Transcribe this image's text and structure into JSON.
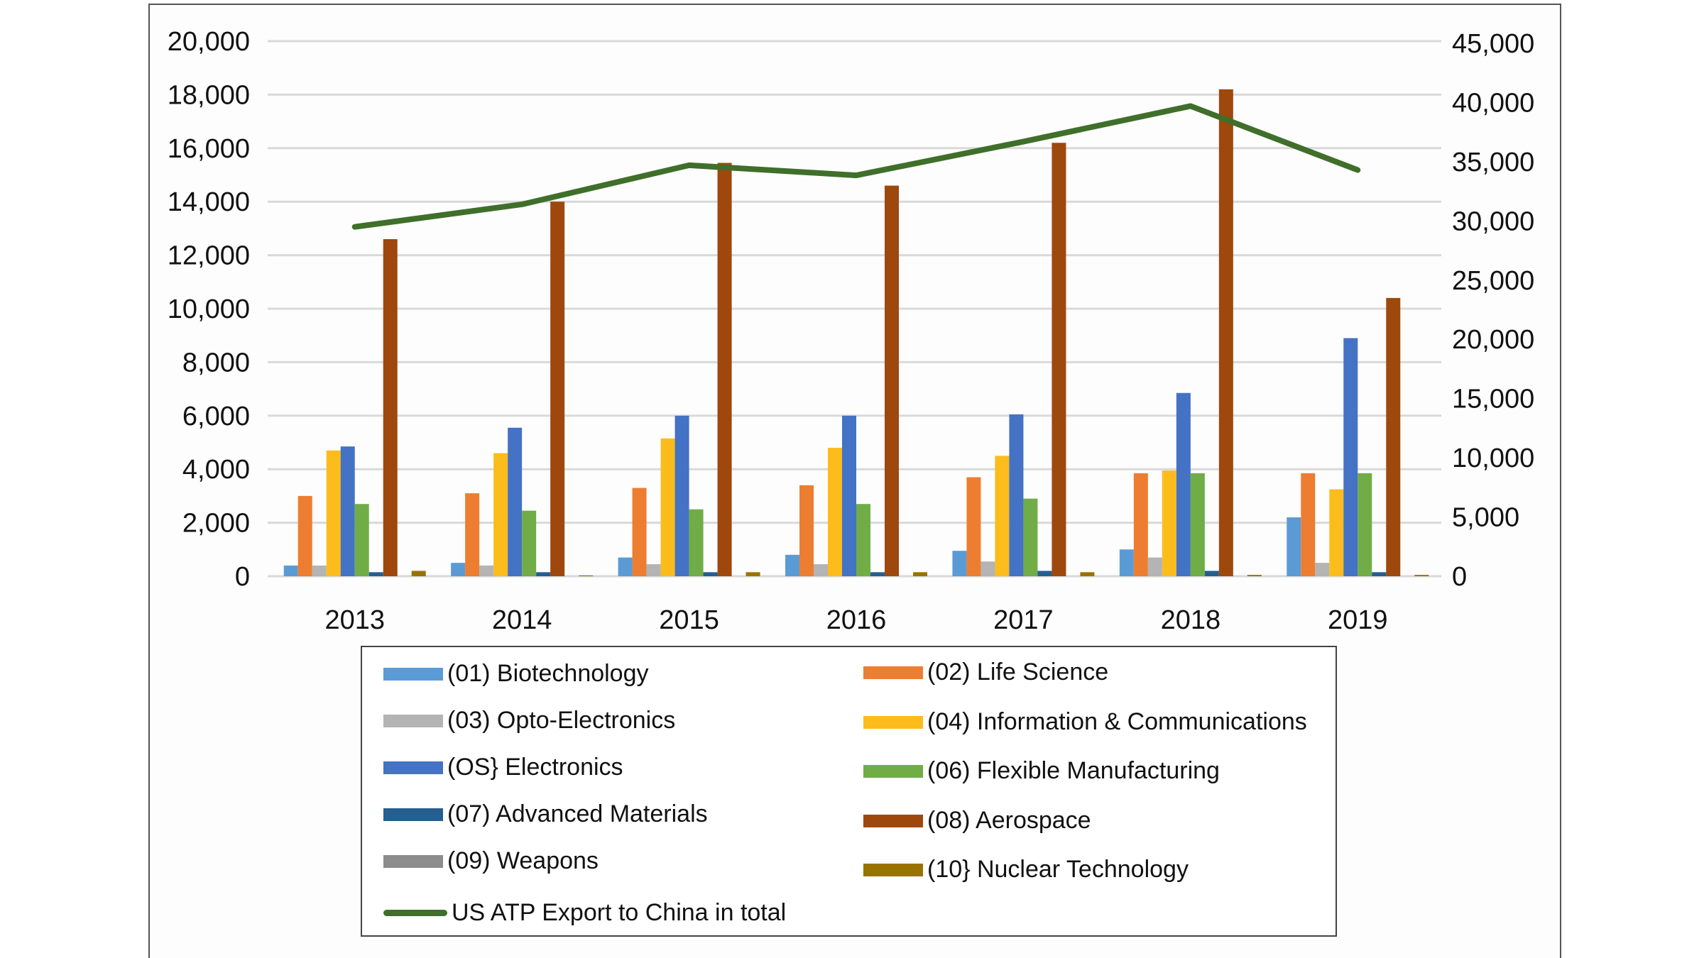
{
  "chart_data": {
    "type": "bar",
    "categories": [
      "2013",
      "2014",
      "2015",
      "2016",
      "2017",
      "2018",
      "2019"
    ],
    "left_axis": {
      "ylim": [
        0,
        20000
      ],
      "ticks": [
        "0",
        "2,000",
        "4,000",
        "6,000",
        "8,000",
        "10,000",
        "12,000",
        "14,000",
        "16,000",
        "18,000",
        "20,000"
      ]
    },
    "right_axis": {
      "ylim": [
        0,
        45000
      ],
      "ticks": [
        "0",
        "5,000",
        "10,000",
        "15,000",
        "20,000",
        "25,000",
        "30,000",
        "35,000",
        "40,000",
        "45,000"
      ]
    },
    "grid": true,
    "legend_position": "bottom",
    "series": [
      {
        "name": "(01) Biotechnology",
        "color": "#5b9bd5",
        "values": [
          400,
          500,
          700,
          800,
          950,
          1000,
          2200
        ]
      },
      {
        "name": "(02) Life Science",
        "color": "#ed7d31",
        "values": [
          3000,
          3100,
          3300,
          3400,
          3700,
          3850,
          3850
        ]
      },
      {
        "name": "(03) Opto-Electronics",
        "color": "#b4b4b4",
        "values": [
          400,
          400,
          450,
          450,
          550,
          700,
          500
        ]
      },
      {
        "name": "(04) Information & Communications",
        "color": "#fbbc1c",
        "values": [
          4700,
          4600,
          5150,
          4800,
          4500,
          3950,
          3250
        ]
      },
      {
        "name": "(OS} Electronics",
        "color": "#4472c4",
        "values": [
          4850,
          5550,
          6000,
          6000,
          6050,
          6850,
          8900
        ]
      },
      {
        "name": "(06) Flexible Manufacturing",
        "color": "#70ad47",
        "values": [
          2700,
          2450,
          2500,
          2700,
          2900,
          3850,
          3850
        ]
      },
      {
        "name": "(07) Advanced Materials",
        "color": "#255e91",
        "values": [
          150,
          150,
          150,
          150,
          200,
          200,
          150
        ]
      },
      {
        "name": "(08) Aerospace",
        "color": "#9e480e",
        "values": [
          12600,
          14000,
          15450,
          14600,
          16200,
          18200,
          10400
        ]
      },
      {
        "name": "(09) Weapons",
        "color": "#8c8c8c",
        "values": [
          0,
          0,
          0,
          0,
          0,
          0,
          0
        ]
      },
      {
        "name": "(10}  Nuclear Technology",
        "color": "#997300",
        "values": [
          200,
          30,
          150,
          150,
          150,
          50,
          50
        ]
      }
    ],
    "line_series": {
      "name": "US ATP Export to China in total",
      "color": "#3f6f2a",
      "axis": "right",
      "values": [
        29500,
        31400,
        34700,
        33850,
        36700,
        39700,
        34300
      ]
    }
  }
}
